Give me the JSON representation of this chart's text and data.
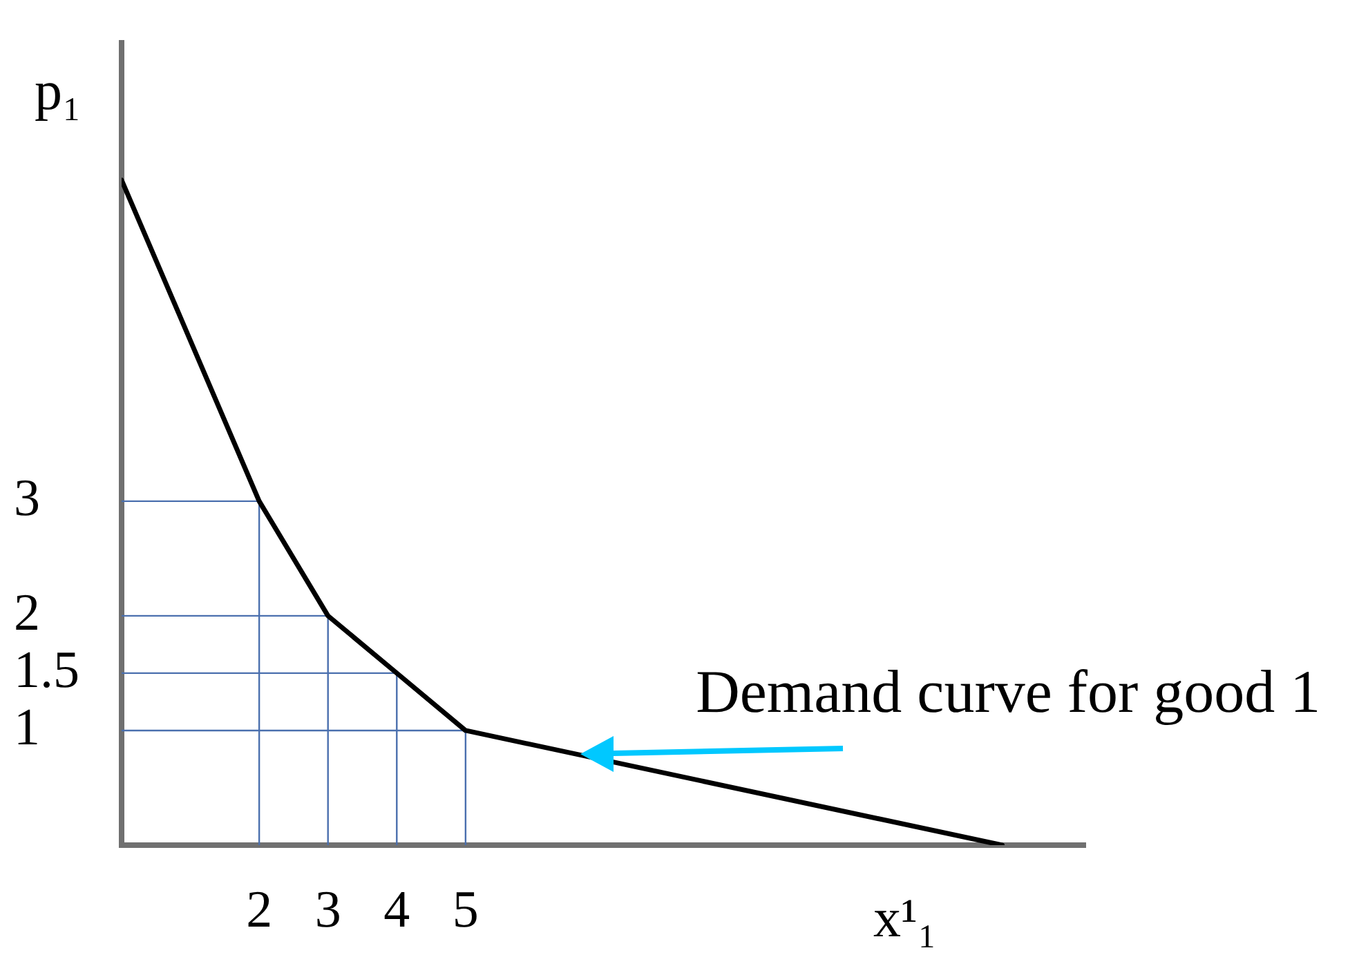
{
  "chart_data": {
    "type": "line",
    "xlabel": "x¹₁",
    "ylabel": "p₁",
    "xlim": [
      0,
      14
    ],
    "ylim": [
      0,
      7
    ],
    "xticks": [
      2,
      3,
      4,
      5
    ],
    "yticks": [
      1,
      1.5,
      2,
      3
    ],
    "series": [
      {
        "color": "#000000",
        "x": [
          0,
          2,
          3,
          4,
          5,
          12.8
        ],
        "values": [
          5.8,
          3,
          2,
          1.5,
          1,
          0
        ]
      },
      {
        "color": "#4a6fae",
        "x": [
          0,
          2,
          2
        ],
        "values": [
          3,
          3,
          0
        ]
      },
      {
        "color": "#4a6fae",
        "x": [
          0,
          3,
          3
        ],
        "values": [
          2,
          2,
          0
        ]
      },
      {
        "color": "#4a6fae",
        "x": [
          0,
          4,
          4
        ],
        "values": [
          1.5,
          1.5,
          0
        ]
      },
      {
        "color": "#4a6fae",
        "x": [
          0,
          5,
          5
        ],
        "values": [
          1,
          1,
          0
        ]
      }
    ],
    "annotations": [
      {
        "text": "Demand curve for good 1",
        "x": 6.5,
        "y": 0.8
      }
    ]
  }
}
